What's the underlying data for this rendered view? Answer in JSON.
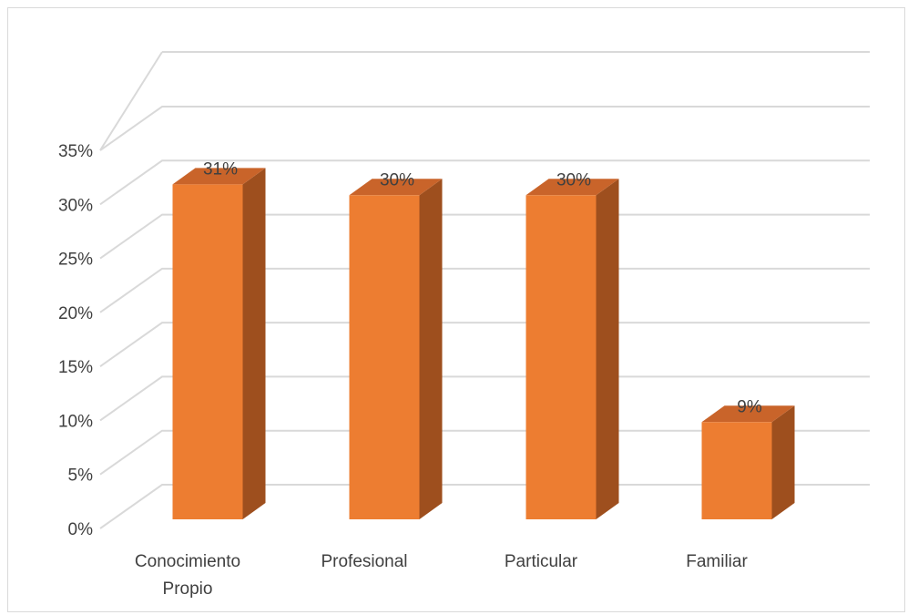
{
  "chart_data": {
    "type": "bar",
    "style": "3d-column",
    "categories": [
      "Conocimiento Propio",
      "Profesional",
      "Particular",
      "Familiar"
    ],
    "category_lines": [
      [
        "Conocimiento",
        "Propio"
      ],
      [
        "Profesional"
      ],
      [
        "Particular"
      ],
      [
        "Familiar"
      ]
    ],
    "values": [
      31,
      30,
      30,
      9
    ],
    "data_labels": [
      "31%",
      "30%",
      "30%",
      "9%"
    ],
    "y_ticks": [
      "0%",
      "5%",
      "10%",
      "15%",
      "20%",
      "25%",
      "30%",
      "35%"
    ],
    "ylim": [
      0,
      35
    ],
    "y_unit": "%",
    "grid": true,
    "legend": "none",
    "title": "",
    "xlabel": "",
    "ylabel": "",
    "colors": {
      "bar_front": "#ed7d31",
      "bar_side": "#9e4f1e",
      "bar_top": "#c9642a",
      "gridline": "#d9d9d9",
      "text": "#404040",
      "frame": "#d9d9d9"
    }
  }
}
